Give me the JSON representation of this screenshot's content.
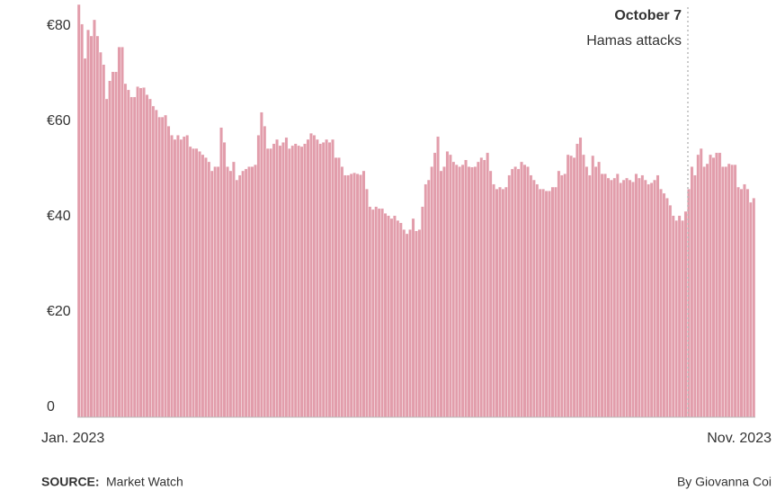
{
  "chart_data": {
    "type": "bar",
    "color": "#e29dab",
    "ylim": [
      0,
      86.6
    ],
    "yticks": [
      0,
      {
        "value": 20,
        "label": "€20"
      },
      {
        "value": 40,
        "label": "€40"
      },
      {
        "value": 60,
        "label": "€60"
      },
      {
        "value": 80,
        "label": "€80"
      }
    ],
    "grid": false,
    "annotation": {
      "title": "October 7",
      "text": "Hamas attacks"
    },
    "source_label": "SOURCE:",
    "source": "Market Watch",
    "byline": "By Giovanna Coi",
    "values": [
      86.6,
      82.5,
      75.3,
      81.3,
      80.0,
      83.4,
      80.0,
      76.6,
      74.0,
      66.8,
      70.6,
      72.5,
      72.5,
      77.7,
      77.7,
      70.0,
      68.7,
      67.2,
      67.2,
      69.4,
      69.1,
      69.2,
      67.7,
      66.8,
      65.3,
      64.5,
      63.0,
      63.0,
      63.4,
      61.1,
      59.2,
      58.3,
      59.2,
      58.3,
      58.9,
      59.2,
      56.8,
      56.4,
      56.4,
      55.8,
      55.1,
      54.5,
      53.6,
      51.7,
      52.6,
      52.6,
      60.8,
      57.7,
      52.6,
      51.7,
      53.6,
      49.8,
      50.8,
      51.7,
      52.1,
      52.6,
      52.6,
      53.0,
      59.2,
      64.0,
      61.1,
      56.4,
      56.4,
      57.4,
      58.3,
      57.0,
      57.7,
      58.7,
      56.4,
      57.0,
      57.4,
      57.0,
      56.8,
      57.4,
      58.3,
      59.6,
      59.2,
      58.3,
      57.4,
      57.7,
      58.3,
      57.7,
      58.3,
      54.5,
      54.5,
      52.6,
      50.8,
      50.8,
      51.1,
      51.3,
      51.1,
      50.9,
      51.7,
      47.9,
      44.2,
      43.6,
      44.2,
      43.8,
      43.8,
      42.8,
      42.3,
      41.7,
      42.3,
      41.3,
      40.8,
      39.4,
      38.5,
      39.4,
      41.7,
      39.1,
      39.4,
      44.2,
      48.9,
      49.8,
      52.6,
      55.5,
      58.9,
      51.7,
      52.6,
      55.8,
      55.1,
      53.6,
      53.0,
      52.6,
      53.0,
      54.0,
      52.6,
      52.5,
      52.6,
      53.6,
      54.5,
      54.0,
      55.5,
      51.7,
      48.9,
      47.9,
      48.3,
      47.9,
      48.3,
      50.8,
      52.1,
      52.6,
      52.1,
      53.6,
      53.0,
      52.6,
      50.8,
      49.8,
      48.9,
      47.9,
      47.9,
      47.5,
      47.5,
      48.3,
      48.3,
      51.7,
      50.8,
      51.1,
      55.1,
      54.9,
      54.5,
      57.4,
      58.7,
      55.1,
      52.6,
      50.8,
      54.9,
      52.6,
      53.6,
      51.1,
      51.1,
      50.2,
      49.8,
      50.2,
      51.1,
      49.2,
      49.8,
      50.2,
      49.8,
      49.4,
      51.1,
      50.2,
      50.8,
      49.8,
      48.9,
      49.2,
      49.8,
      50.8,
      47.9,
      47.0,
      46.0,
      44.5,
      42.3,
      41.3,
      42.3,
      41.3,
      43.2,
      47.9,
      52.6,
      50.8,
      55.1,
      56.4,
      52.6,
      53.2,
      55.1,
      54.5,
      55.5,
      55.5,
      52.6,
      52.6,
      53.2,
      53.0,
      53.0,
      48.3,
      47.9,
      48.9,
      47.9,
      45.1,
      46.0
    ],
    "first_label": "Jan. 2023",
    "last_label": "Nov. 2023"
  }
}
